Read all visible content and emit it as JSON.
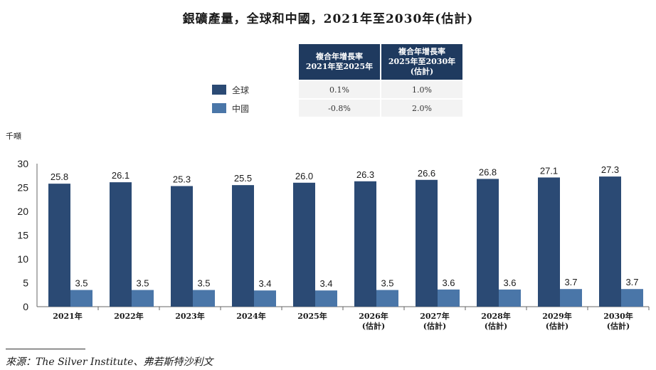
{
  "title": "銀礦產量，全球和中國，2021年至2030年(估計)",
  "unit_label": "千噸",
  "source": "來源：The Silver Institute、弗若斯特沙利文",
  "cagr_table": {
    "headers": [
      "複合年增長率\n2021年至2025年",
      "複合年增長率\n2025年至2030年\n(估計)"
    ],
    "rows": [
      {
        "name": "全球",
        "values": [
          "0.1%",
          "1.0%"
        ],
        "color": "#2b4a74"
      },
      {
        "name": "中國",
        "values": [
          "-0.8%",
          "2.0%"
        ],
        "color": "#4a76a8"
      }
    ]
  },
  "chart_data": {
    "type": "bar",
    "categories": [
      "2021年",
      "2022年",
      "2023年",
      "2024年",
      "2025年",
      "2026年\n(估計)",
      "2027年\n(估計)",
      "2028年\n(估計)",
      "2029年\n(估計)",
      "2030年\n(估計)"
    ],
    "series": [
      {
        "name": "全球",
        "values": [
          25.8,
          26.1,
          25.3,
          25.5,
          26.0,
          26.3,
          26.6,
          26.8,
          27.1,
          27.3
        ],
        "color": "#2b4a74"
      },
      {
        "name": "中國",
        "values": [
          3.5,
          3.5,
          3.5,
          3.4,
          3.4,
          3.5,
          3.6,
          3.6,
          3.7,
          3.7
        ],
        "color": "#4a76a8"
      }
    ],
    "ylabel": "千噸",
    "ylim": [
      0,
      30
    ],
    "yticks": [
      0,
      5,
      10,
      15,
      20,
      25,
      30
    ],
    "grid": false,
    "legend": "top"
  }
}
